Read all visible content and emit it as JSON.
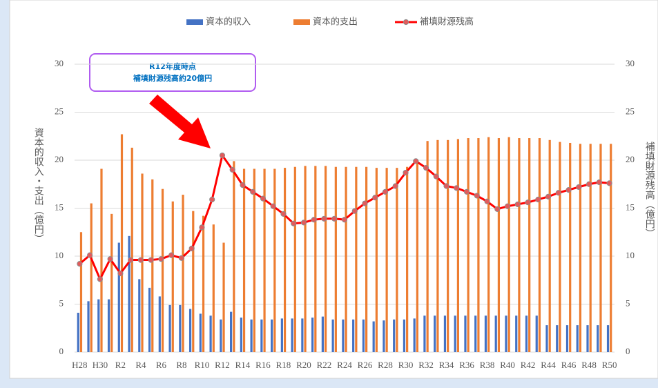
{
  "chart_data": {
    "type": "combo",
    "categories": [
      "H28",
      null,
      "H30",
      null,
      "R2",
      null,
      "R4",
      null,
      "R6",
      null,
      "R8",
      null,
      "R10",
      null,
      "R12",
      null,
      "R14",
      null,
      "R16",
      null,
      "R18",
      null,
      "R20",
      null,
      "R22",
      null,
      "R24",
      null,
      "R26",
      null,
      "R28",
      null,
      "R30",
      null,
      "R32",
      null,
      "R34",
      null,
      "R36",
      null,
      "R38",
      null,
      "R40",
      null,
      "R42",
      null,
      "R44",
      null,
      "R46",
      null,
      "R48",
      null,
      "R50"
    ],
    "series": [
      {
        "name": "資本的収入",
        "type": "bar",
        "color": "#4472c4",
        "values": [
          4.1,
          5.3,
          5.5,
          5.5,
          11.4,
          12.1,
          7.6,
          6.7,
          5.8,
          4.9,
          4.9,
          4.5,
          4.0,
          3.8,
          3.4,
          4.2,
          3.6,
          3.4,
          3.4,
          3.4,
          3.5,
          3.5,
          3.5,
          3.6,
          3.7,
          3.4,
          3.4,
          3.4,
          3.4,
          3.2,
          3.3,
          3.4,
          3.4,
          3.5,
          3.8,
          3.8,
          3.8,
          3.8,
          3.8,
          3.8,
          3.8,
          3.8,
          3.8,
          3.8,
          3.8,
          3.8,
          2.8,
          2.8,
          2.8,
          2.8,
          2.8,
          2.8,
          2.8
        ]
      },
      {
        "name": "資本的支出",
        "type": "bar",
        "color": "#ed7d31",
        "values": [
          12.5,
          15.5,
          19.1,
          14.4,
          22.7,
          21.3,
          18.6,
          18.0,
          17.0,
          15.7,
          16.4,
          14.7,
          14.2,
          13.3,
          11.4,
          19.9,
          19.1,
          19.1,
          19.1,
          19.1,
          19.2,
          19.3,
          19.4,
          19.4,
          19.4,
          19.3,
          19.3,
          19.3,
          19.3,
          19.2,
          19.2,
          19.2,
          19.3,
          19.8,
          22.0,
          22.1,
          22.1,
          22.2,
          22.3,
          22.3,
          22.4,
          22.3,
          22.4,
          22.3,
          22.3,
          22.3,
          22.1,
          21.9,
          21.8,
          21.7,
          21.7,
          21.7,
          21.7
        ]
      },
      {
        "name": "補填財源残高",
        "type": "line",
        "axis": "y2",
        "color": "#ff0000",
        "values": [
          9.2,
          10.1,
          7.6,
          9.7,
          8.2,
          9.6,
          9.6,
          9.6,
          9.7,
          10.1,
          9.8,
          10.8,
          13.0,
          15.9,
          20.5,
          19.0,
          17.4,
          16.7,
          16.0,
          15.2,
          14.4,
          13.4,
          13.5,
          13.8,
          13.9,
          13.9,
          13.8,
          14.7,
          15.5,
          16.1,
          16.7,
          17.3,
          18.7,
          19.9,
          19.2,
          18.3,
          17.3,
          17.1,
          16.7,
          16.3,
          15.7,
          14.9,
          15.2,
          15.4,
          15.6,
          15.9,
          16.2,
          16.6,
          16.9,
          17.2,
          17.5,
          17.7,
          17.6
        ]
      }
    ],
    "ylabel": "資本的収入・支出（億円）",
    "y2label": "補填財源残高（億円）",
    "ylim": [
      0,
      30
    ],
    "yticks": [
      0,
      5,
      10,
      15,
      20,
      25,
      30
    ],
    "y2lim": [
      0,
      30
    ],
    "y2ticks": [
      0,
      5,
      10,
      15,
      20,
      25,
      30
    ],
    "grid": true,
    "legend": "top",
    "annotation": [
      "R12年度時点",
      "補填財源残高約20億円"
    ]
  }
}
